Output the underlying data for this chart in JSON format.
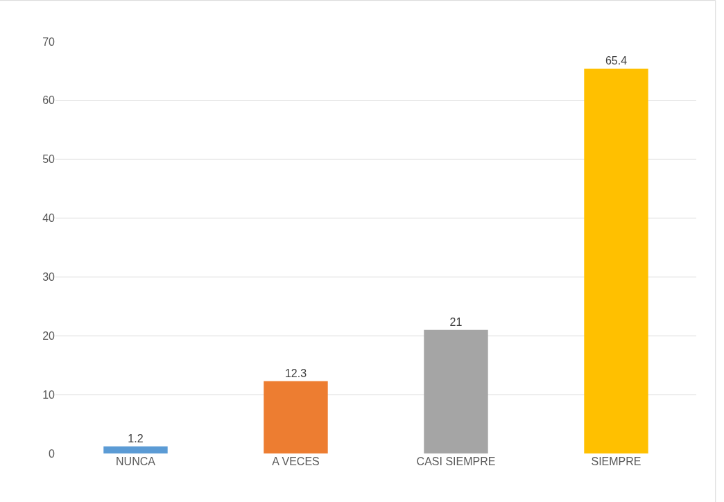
{
  "chart_data": {
    "type": "bar",
    "categories": [
      "NUNCA",
      "A VECES",
      "CASI SIEMPRE",
      "SIEMPRE"
    ],
    "values": [
      1.2,
      12.3,
      21,
      65.4
    ],
    "colors": [
      "#5b9bd5",
      "#ed7d31",
      "#a5a5a5",
      "#ffc000"
    ],
    "ylim": [
      0,
      70
    ],
    "yticks": [
      0,
      10,
      20,
      30,
      40,
      50,
      60,
      70
    ],
    "grid": "y",
    "data_labels": true
  }
}
